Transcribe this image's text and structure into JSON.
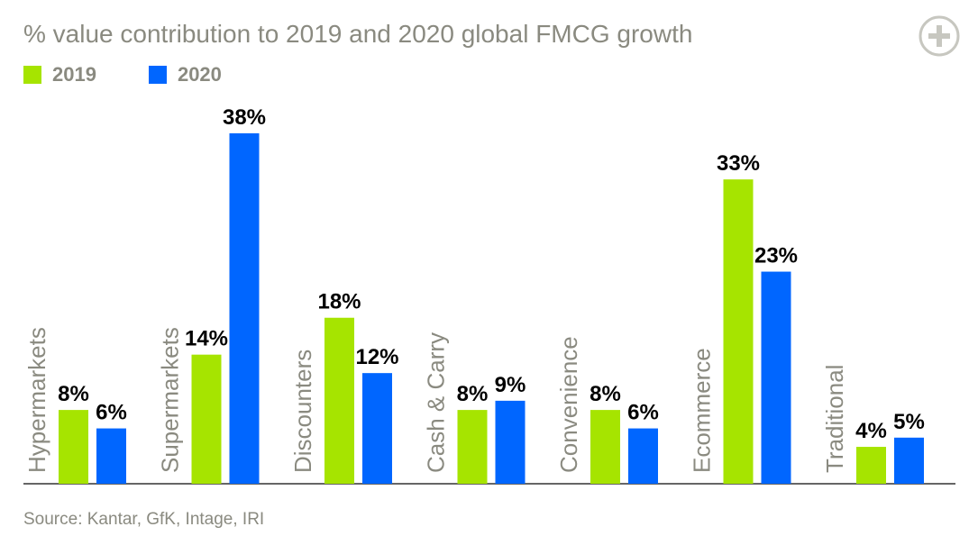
{
  "colors": {
    "series_2019": "#a6e400",
    "series_2020": "#0066ff",
    "text_muted": "#8a8a80",
    "axis": "#333333"
  },
  "icons": {
    "expand": "plus-circle-icon"
  },
  "source": "Source: Kantar, GfK, Intage, IRI",
  "chart_data": {
    "type": "bar",
    "title": "% value contribution to 2019 and 2020 global FMCG growth",
    "categories": [
      "Hypermarkets",
      "Supermarkets",
      "Discounters",
      "Cash & Carry",
      "Convenience",
      "Ecommerce",
      "Traditional"
    ],
    "series": [
      {
        "name": "2019",
        "values": [
          8,
          14,
          18,
          8,
          8,
          33,
          4
        ],
        "labels": [
          "8%",
          "14%",
          "18%",
          "8%",
          "8%",
          "33%",
          "4%"
        ]
      },
      {
        "name": "2020",
        "values": [
          6,
          38,
          12,
          9,
          6,
          23,
          5
        ],
        "labels": [
          "6%",
          "38%",
          "12%",
          "9%",
          "6%",
          "23%",
          "5%"
        ]
      }
    ],
    "ylim": [
      0,
      38
    ],
    "grid": false,
    "legend": "top-left"
  }
}
